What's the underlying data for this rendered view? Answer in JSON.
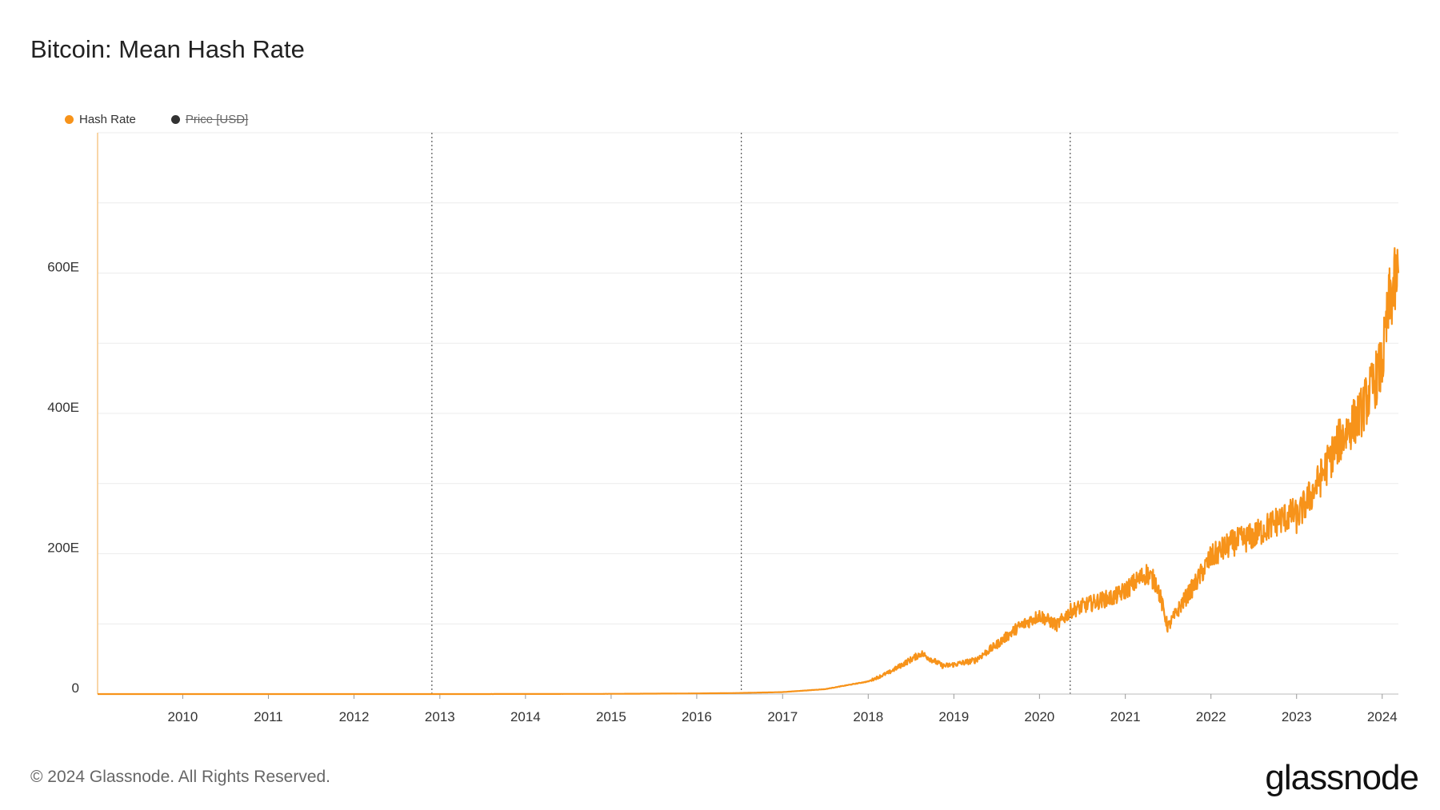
{
  "title": "Bitcoin: Mean Hash Rate",
  "legend": [
    {
      "label": "Hash Rate",
      "color": "#f7931a",
      "visible": true
    },
    {
      "label": "Price [USD]",
      "color": "#333333",
      "visible": false
    }
  ],
  "footer": {
    "copyright": "© 2024 Glassnode. All Rights Reserved.",
    "logo": "glassnode"
  },
  "chart_data": {
    "type": "line",
    "title": "Bitcoin: Mean Hash Rate",
    "xlabel": "",
    "ylabel": "",
    "x_range": [
      "2009-01-03",
      "2024-03-10"
    ],
    "ylim": [
      0,
      800
    ],
    "y_ticks": [
      0,
      200,
      400,
      600
    ],
    "y_tick_labels": [
      "0",
      "200E",
      "400E",
      "600E"
    ],
    "x_ticks": [
      "2010",
      "2011",
      "2012",
      "2013",
      "2014",
      "2015",
      "2016",
      "2017",
      "2018",
      "2019",
      "2020",
      "2021",
      "2022",
      "2023",
      "2024"
    ],
    "grid": true,
    "legend_position": "top-left",
    "halving_dates": [
      "2012-11-28",
      "2016-07-09",
      "2020-05-11"
    ],
    "series": [
      {
        "name": "Hash Rate",
        "color": "#f7931a",
        "x": [
          "2009-01-03",
          "2010-01-01",
          "2011-01-01",
          "2012-01-01",
          "2013-01-01",
          "2014-01-01",
          "2015-01-01",
          "2016-01-01",
          "2016-07-01",
          "2017-01-01",
          "2017-07-01",
          "2018-01-01",
          "2018-04-01",
          "2018-08-15",
          "2018-11-15",
          "2019-01-01",
          "2019-04-01",
          "2019-07-01",
          "2019-10-01",
          "2020-01-01",
          "2020-03-15",
          "2020-05-11",
          "2020-07-01",
          "2020-10-01",
          "2020-11-15",
          "2021-01-01",
          "2021-04-01",
          "2021-05-15",
          "2021-07-01",
          "2021-09-01",
          "2021-11-01",
          "2022-01-01",
          "2022-04-01",
          "2022-07-01",
          "2022-10-01",
          "2022-12-24",
          "2023-01-01",
          "2023-04-01",
          "2023-07-01",
          "2023-10-01",
          "2024-01-01",
          "2024-02-01",
          "2024-03-10"
        ],
        "values": [
          0,
          0,
          0,
          0,
          0.02,
          0.08,
          0.3,
          0.9,
          1.5,
          2.8,
          7,
          18,
          31,
          58,
          40,
          42,
          48,
          70,
          95,
          112,
          98,
          118,
          125,
          135,
          138,
          148,
          172,
          158,
          95,
          130,
          160,
          195,
          215,
          225,
          245,
          258,
          250,
          300,
          360,
          400,
          470,
          560,
          600
        ]
      }
    ]
  }
}
